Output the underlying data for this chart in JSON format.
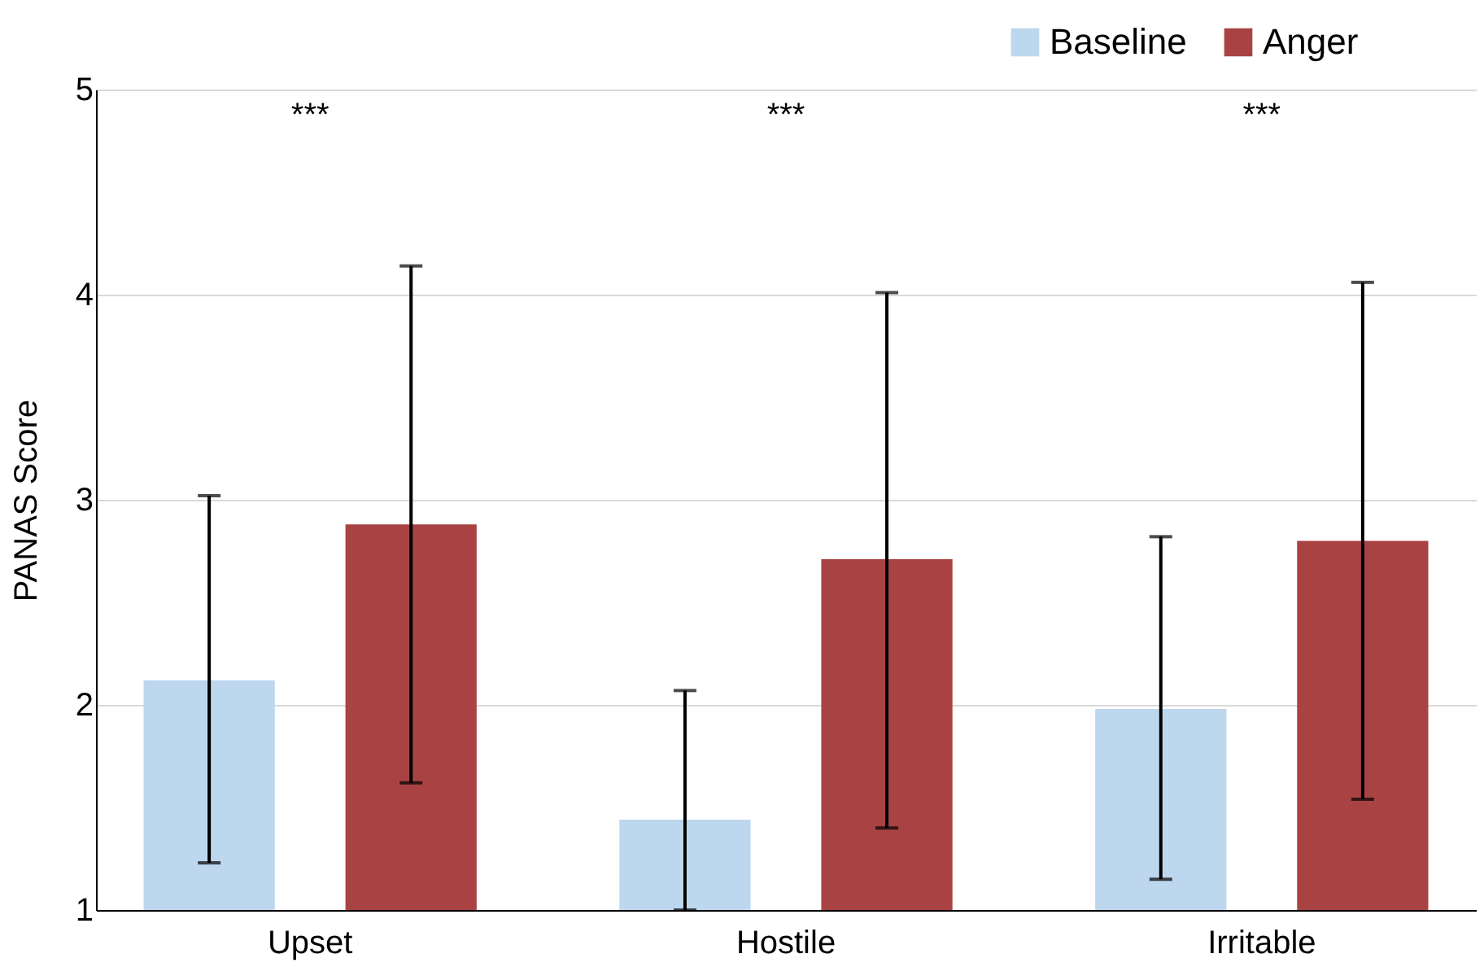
{
  "chart_data": {
    "type": "bar",
    "ylabel": "PANAS Score",
    "categories": [
      "Upset",
      "Hostile",
      "Irritable"
    ],
    "series": [
      {
        "name": "Baseline",
        "color": "#bdd7ee",
        "values": [
          2.12,
          1.44,
          1.98
        ],
        "errors": [
          [
            1.23,
            3.02
          ],
          [
            1.0,
            2.07
          ],
          [
            1.15,
            2.82
          ]
        ]
      },
      {
        "name": "Anger",
        "color": "#a94343",
        "values": [
          2.88,
          2.71,
          2.8
        ],
        "errors": [
          [
            1.62,
            4.14
          ],
          [
            1.4,
            4.01
          ],
          [
            1.54,
            4.06
          ]
        ]
      }
    ],
    "ylim": [
      1,
      5
    ],
    "yticks": [
      1,
      2,
      3,
      4,
      5
    ],
    "grid": "y",
    "legend": "top right",
    "annotations": [
      "***",
      "***",
      "***"
    ]
  }
}
